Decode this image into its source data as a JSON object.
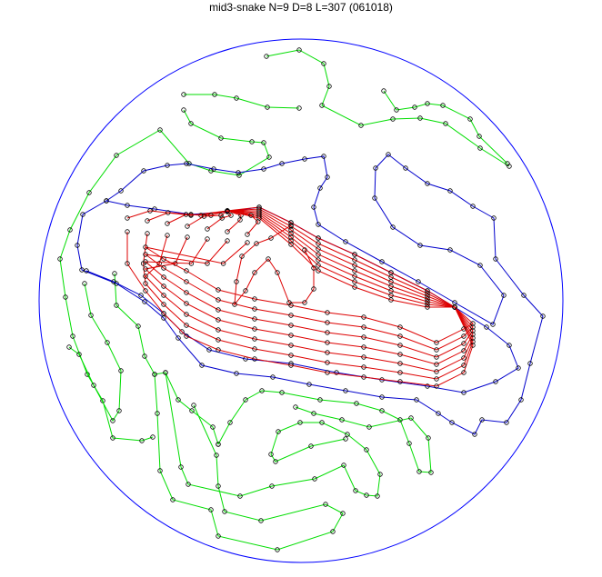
{
  "title": "mid3-snake N=9 D=8 L=307 (061018)",
  "colors": {
    "boundary": "#0000ff",
    "green_paths": "#00dd00",
    "blue_paths": "#0000cc",
    "red_paths": "#dd0000",
    "markers": "#000000"
  }
}
